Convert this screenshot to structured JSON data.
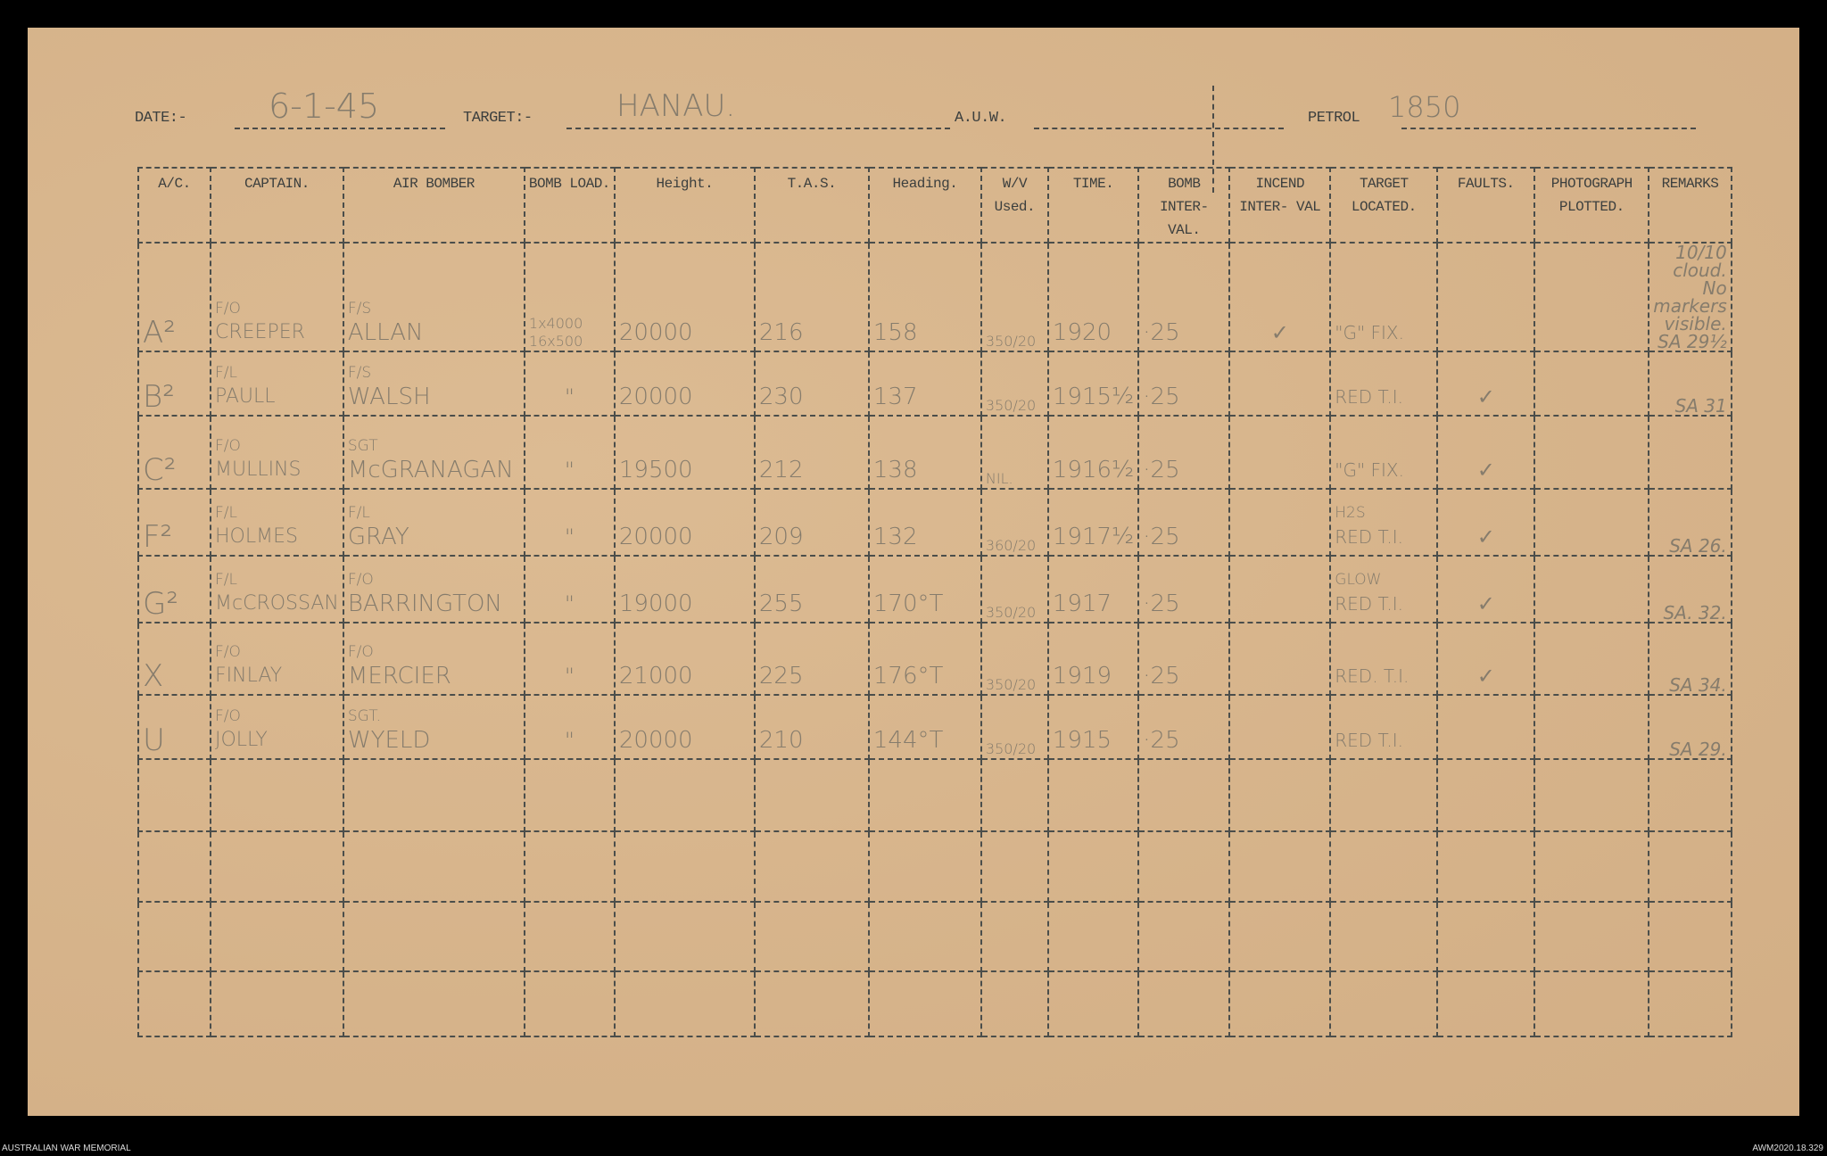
{
  "form": {
    "date_label": "DATE:-",
    "date_value": "6-1-45",
    "target_label": "TARGET:-",
    "target_value": "HANAU.",
    "auw_label": "A.U.W.",
    "auw_value": "",
    "petrol_label": "PETROL",
    "petrol_value": "1850"
  },
  "columns": [
    "A/C.",
    "CAPTAIN.",
    "AIR BOMBER",
    "BOMB LOAD.",
    "Height.",
    "T.A.S.",
    "Heading.",
    "W/V Used.",
    "TIME.",
    "BOMB INTER- VAL.",
    "INCEND INTER- VAL",
    "TARGET LOCATED.",
    "FAULTS.",
    "PHOTOGRAPH PLOTTED.",
    "REMARKS"
  ],
  "rows": [
    {
      "ac": "A²",
      "captain_rank": "F/O",
      "captain": "CREEPER",
      "bomber_rank": "F/S",
      "bomber": "ALLAN",
      "bomb_load_top": "1x4000",
      "bomb_load": "16x500",
      "height": "20000",
      "tas": "216",
      "heading": "158",
      "wv": "350/20",
      "time": "1920",
      "bomb_interval": "·25",
      "incend_interval": "✓",
      "target_note": "",
      "target_located": "\"G\" FIX.",
      "faults": "",
      "photo": "",
      "remarks": "10/10 cloud. No markers visible. SA 29½"
    },
    {
      "ac": "B²",
      "captain_rank": "F/L",
      "captain": "PAULL",
      "bomber_rank": "F/S",
      "bomber": "WALSH",
      "bomb_load_top": "",
      "bomb_load": "\"",
      "height": "20000",
      "tas": "230",
      "heading": "137",
      "wv": "350/20",
      "time": "1915½",
      "bomb_interval": "·25",
      "incend_interval": "",
      "target_note": "",
      "target_located": "RED T.I.",
      "faults": "✓",
      "photo": "",
      "remarks": "SA 31"
    },
    {
      "ac": "C²",
      "captain_rank": "F/O",
      "captain": "MULLINS",
      "bomber_rank": "SGT",
      "bomber": "McGRANAGAN",
      "bomb_load_top": "",
      "bomb_load": "\"",
      "height": "19500",
      "tas": "212",
      "heading": "138",
      "wv": "NIL.",
      "time": "1916½",
      "bomb_interval": "·25",
      "incend_interval": "",
      "target_note": "",
      "target_located": "\"G\" FIX.",
      "faults": "✓",
      "photo": "",
      "remarks": ""
    },
    {
      "ac": "F²",
      "captain_rank": "F/L",
      "captain": "HOLMES",
      "bomber_rank": "F/L",
      "bomber": "GRAY",
      "bomb_load_top": "",
      "bomb_load": "\"",
      "height": "20000",
      "tas": "209",
      "heading": "132",
      "wv": "360/20",
      "time": "1917½",
      "bomb_interval": "·25",
      "incend_interval": "",
      "target_note": "H2S",
      "target_located": "RED T.I.",
      "faults": "✓",
      "photo": "",
      "remarks": "SA 26."
    },
    {
      "ac": "G²",
      "captain_rank": "F/L",
      "captain": "McCROSSAN",
      "bomber_rank": "F/O",
      "bomber": "BARRINGTON",
      "bomb_load_top": "",
      "bomb_load": "\"",
      "height": "19000",
      "tas": "255",
      "heading": "170°T",
      "wv": "350/20",
      "time": "1917",
      "bomb_interval": "·25",
      "incend_interval": "",
      "target_note": "GLOW",
      "target_located": "RED T.I.",
      "faults": "✓",
      "photo": "",
      "remarks": "SA. 32."
    },
    {
      "ac": "X",
      "captain_rank": "F/O",
      "captain": "FINLAY",
      "bomber_rank": "F/O",
      "bomber": "MERCIER",
      "bomb_load_top": "",
      "bomb_load": "\"",
      "height": "21000",
      "tas": "225",
      "heading": "176°T",
      "wv": "350/20",
      "time": "1919",
      "bomb_interval": "·25",
      "incend_interval": "",
      "target_note": "",
      "target_located": "RED. T.I.",
      "faults": "✓",
      "photo": "",
      "remarks": "SA 34."
    },
    {
      "ac": "U",
      "captain_rank": "F/O",
      "captain": "JOLLY",
      "bomber_rank": "SGT.",
      "bomber": "WYELD",
      "bomb_load_top": "",
      "bomb_load": "\"",
      "height": "20000",
      "tas": "210",
      "heading": "144°T",
      "wv": "350/20",
      "time": "1915",
      "bomb_interval": "·25",
      "incend_interval": "",
      "target_note": "",
      "target_located": "RED T.I.",
      "faults": "",
      "photo": "",
      "remarks": "SA 29."
    }
  ],
  "empty_rows": 4,
  "footer": {
    "left": "AUSTRALIAN WAR MEMORIAL",
    "right": "AWM2020.18.329"
  }
}
